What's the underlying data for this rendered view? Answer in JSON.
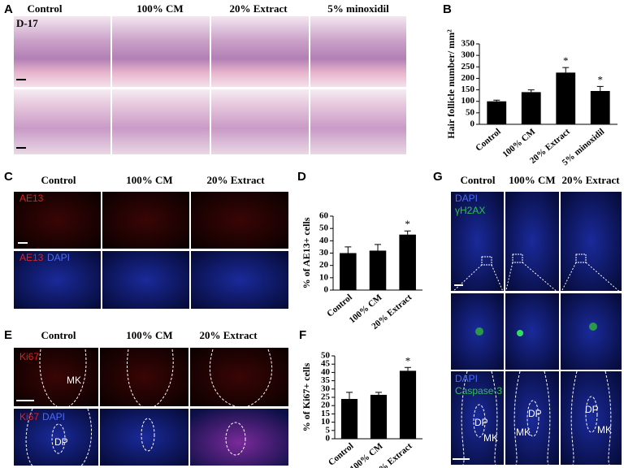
{
  "panels": {
    "letters": [
      "A",
      "B",
      "C",
      "D",
      "E",
      "F",
      "G"
    ],
    "A": {
      "columns": [
        "Control",
        "100% CM",
        "20% Extract",
        "5% minoxidil"
      ],
      "day": "D-17"
    },
    "C": {
      "columns": [
        "Control",
        "100% CM",
        "20% Extract"
      ],
      "stain_top": "AE13",
      "stain_bottom": [
        "AE13",
        "DAPI"
      ]
    },
    "E": {
      "columns": [
        "Control",
        "100% CM",
        "20% Extract"
      ],
      "stain_top": "Ki67",
      "stain_bottom": [
        "Ki67",
        "DAPI"
      ],
      "regions": [
        "MK",
        "DP"
      ]
    },
    "G": {
      "columns": [
        "Control",
        "100% CM",
        "20% Extract"
      ],
      "stain_top": [
        "DAPI",
        "γH2AX"
      ],
      "stain_bottom": [
        "DAPI",
        "Caspase-3"
      ],
      "regions": [
        "DP",
        "MK"
      ]
    }
  },
  "chart_data": [
    {
      "type": "bar",
      "ylabel": "Hair follicle number/ mm²",
      "categories": [
        "Control",
        "100% CM",
        "20% Extract",
        "5% minoxidil"
      ],
      "values": [
        100,
        140,
        225,
        145
      ],
      "errors": [
        5,
        10,
        22,
        20
      ],
      "color": "#000000",
      "ylim": [
        0,
        350
      ],
      "yticks": [
        0,
        50,
        100,
        150,
        200,
        250,
        300,
        350
      ],
      "annotations": [
        {
          "text": "*",
          "category": "20% Extract"
        },
        {
          "text": "*",
          "category": "5% minoxidil"
        }
      ]
    },
    {
      "type": "bar",
      "ylabel": "% of AE13+ cells",
      "categories": [
        "Control",
        "100% CM",
        "20% Extract"
      ],
      "values": [
        30,
        32,
        45
      ],
      "errors": [
        5,
        5,
        3
      ],
      "color": "#000000",
      "ylim": [
        0,
        60
      ],
      "yticks": [
        0,
        10,
        20,
        30,
        40,
        50,
        60
      ],
      "annotations": [
        {
          "text": "*",
          "category": "20% Extract"
        }
      ]
    },
    {
      "type": "bar",
      "ylabel": "% of Ki67+ cells",
      "categories": [
        "Control",
        "100% CM",
        "20% Extract"
      ],
      "values": [
        24,
        26.5,
        41
      ],
      "errors": [
        4,
        1.5,
        2
      ],
      "color": "#000000",
      "ylim": [
        0,
        50
      ],
      "yticks": [
        0,
        5,
        10,
        15,
        20,
        25,
        30,
        35,
        40,
        45,
        50
      ],
      "annotations": [
        {
          "text": "*",
          "category": "20% Extract"
        }
      ]
    }
  ]
}
